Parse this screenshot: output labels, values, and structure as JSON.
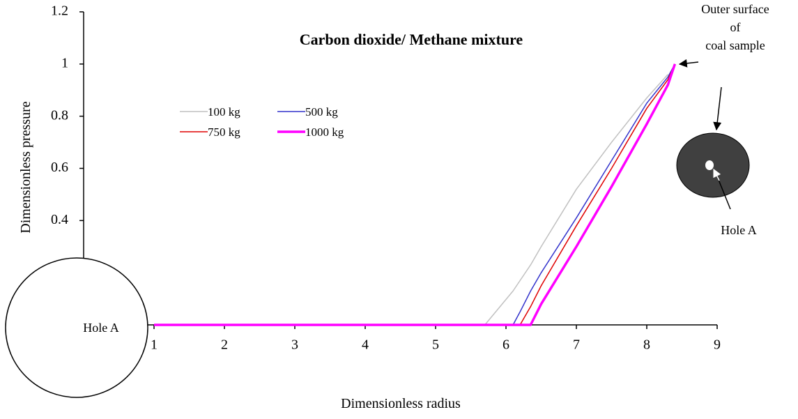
{
  "chart_data": {
    "type": "line",
    "title": "Carbon dioxide/ Methane mixture",
    "x_label": "Dimensionless radius",
    "y_label": "Dimensionless pressure",
    "x": [
      1,
      5.7,
      6.1,
      6.2,
      6.35,
      6.5,
      7,
      7.5,
      8,
      8.3,
      8.4
    ],
    "series": [
      {
        "name": "100 kg",
        "color": "#c0c0c0",
        "width": 1.5,
        "values": [
          0,
          0,
          0.13,
          0.17,
          0.23,
          0.3,
          0.52,
          0.7,
          0.87,
          0.96,
          null
        ]
      },
      {
        "name": "500 kg",
        "color": "#3333cc",
        "width": 1.5,
        "values": [
          0,
          0,
          0,
          0.05,
          0.13,
          0.2,
          0.41,
          0.63,
          0.85,
          0.95,
          1
        ]
      },
      {
        "name": "750 kg",
        "color": "#e00000",
        "width": 1.5,
        "values": [
          0,
          0,
          0,
          0,
          0.07,
          0.15,
          0.38,
          0.6,
          0.83,
          0.94,
          1
        ]
      },
      {
        "name": "1000 kg",
        "color": "#ff00ff",
        "width": 3.5,
        "values": [
          0,
          0,
          0,
          0,
          0,
          0.08,
          0.3,
          0.53,
          0.77,
          0.92,
          1
        ]
      }
    ],
    "xlim": [
      0,
      9
    ],
    "xticks": [
      1,
      2,
      3,
      4,
      5,
      6,
      7,
      8,
      9
    ],
    "ylim": [
      0,
      1.2
    ],
    "yticks": [
      0.4,
      0.6,
      0.8,
      1,
      1.2
    ],
    "annotations": {
      "outer_surface": [
        "Outer surface",
        "of",
        "coal sample"
      ],
      "hole_left": "Hole  A",
      "hole_right": "Hole A"
    }
  }
}
